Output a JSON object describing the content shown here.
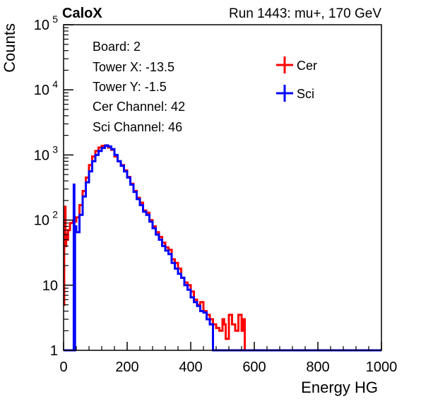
{
  "header": {
    "left_label": "CaloX",
    "right_label": "Run 1443: mu+, 170 GeV"
  },
  "info_box": {
    "lines": [
      "Board: 2",
      "Tower X: -13.5",
      "Tower Y: -1.5",
      "Cer Channel: 42",
      "Sci Channel: 46"
    ]
  },
  "chart_data": {
    "type": "line",
    "title": "",
    "xlabel": "Energy HG",
    "ylabel": "Counts",
    "xlim": [
      0,
      1000
    ],
    "ylim": [
      1,
      100000
    ],
    "y_scale": "log",
    "x_ticks": [
      0,
      200,
      400,
      600,
      800,
      1000
    ],
    "y_ticks": [
      {
        "value": 1,
        "base": "1",
        "exp": ""
      },
      {
        "value": 10,
        "base": "10",
        "exp": ""
      },
      {
        "value": 100,
        "base": "10",
        "exp": "2"
      },
      {
        "value": 1000,
        "base": "10",
        "exp": "3"
      },
      {
        "value": 10000,
        "base": "10",
        "exp": "4"
      },
      {
        "value": 100000,
        "base": "10",
        "exp": "5"
      }
    ],
    "grid": false,
    "legend_position": "top-right",
    "series": [
      {
        "name": "Cer",
        "color": "#ff0000",
        "x": [
          0,
          2,
          4,
          6,
          8,
          10,
          14,
          20,
          30,
          40,
          50,
          60,
          70,
          80,
          90,
          100,
          110,
          120,
          130,
          135,
          140,
          150,
          160,
          170,
          180,
          190,
          200,
          210,
          220,
          230,
          240,
          250,
          260,
          270,
          280,
          290,
          300,
          310,
          320,
          330,
          340,
          350,
          360,
          370,
          380,
          390,
          400,
          410,
          420,
          430,
          440,
          450,
          460,
          470,
          480,
          490,
          500,
          505,
          510,
          520,
          530,
          540,
          550,
          560,
          565,
          570,
          580,
          600,
          700,
          800,
          900,
          1000
        ],
        "y": [
          5,
          100,
          160,
          40,
          60,
          50,
          70,
          90,
          95,
          110,
          170,
          280,
          450,
          700,
          950,
          1150,
          1300,
          1380,
          1400,
          1380,
          1300,
          1200,
          950,
          800,
          700,
          580,
          460,
          360,
          280,
          220,
          185,
          140,
          130,
          100,
          80,
          65,
          55,
          45,
          38,
          35,
          25,
          22,
          18,
          13,
          11,
          10,
          8,
          6,
          5,
          5.5,
          4,
          3.5,
          3,
          2.5,
          2.2,
          2,
          3,
          2.5,
          1.5,
          3.5,
          2.5,
          2,
          3.5,
          2,
          3,
          1,
          1,
          1,
          1,
          1,
          1,
          1
        ]
      },
      {
        "name": "Sci",
        "color": "#0000ff",
        "x": [
          0,
          20,
          30,
          32,
          34,
          36,
          40,
          50,
          60,
          70,
          80,
          90,
          100,
          110,
          120,
          130,
          135,
          140,
          150,
          160,
          170,
          180,
          190,
          200,
          210,
          220,
          230,
          240,
          250,
          260,
          270,
          280,
          290,
          300,
          310,
          320,
          330,
          340,
          350,
          360,
          370,
          380,
          390,
          400,
          410,
          420,
          430,
          440,
          450,
          460,
          470,
          480,
          490,
          500,
          600,
          700,
          800,
          900,
          1000
        ],
        "y": [
          1,
          1,
          1,
          350,
          1,
          80,
          65,
          120,
          230,
          380,
          560,
          800,
          1000,
          1150,
          1280,
          1380,
          1400,
          1350,
          1230,
          1000,
          800,
          680,
          560,
          450,
          350,
          270,
          210,
          170,
          135,
          120,
          95,
          75,
          60,
          50,
          40,
          34,
          30,
          22,
          18,
          15,
          13,
          10,
          8.5,
          6.5,
          5.5,
          4.8,
          4,
          3.8,
          3,
          2.5,
          1,
          1,
          1,
          1,
          1,
          1,
          1,
          1,
          1
        ]
      }
    ]
  }
}
